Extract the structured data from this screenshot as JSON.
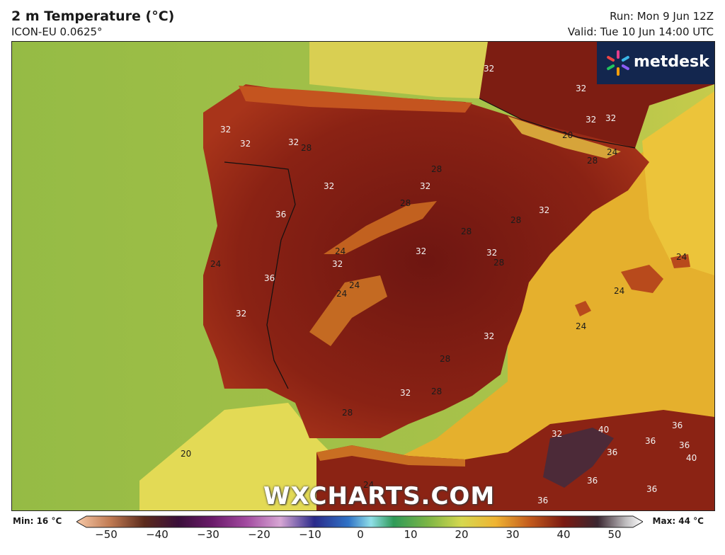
{
  "header": {
    "title": "2 m Temperature (°C)",
    "model": "ICON-EU 0.0625°",
    "run": "Run: Mon 9 Jun 12Z",
    "valid": "Valid: Tue 10 Jun 14:00 UTC"
  },
  "logo": {
    "text": "metdesk",
    "icon": "metdesk-flower-icon"
  },
  "watermark": "WXCHARTS.COM",
  "colorbar": {
    "min_label": "Min: 16 °C",
    "max_label": "Max: 44 °C",
    "ticks": [
      "−50",
      "−40",
      "−30",
      "−20",
      "−10",
      "0",
      "10",
      "20",
      "30",
      "40",
      "50"
    ],
    "range": [
      -50,
      50
    ]
  },
  "contour_labels": {
    "l1": "32",
    "l2": "32",
    "l3": "32",
    "l4": "32",
    "l5": "32",
    "l6": "20",
    "l7": "24",
    "l8": "28",
    "l9": "32",
    "l10": "32",
    "l11": "32",
    "l12": "28",
    "l13": "28",
    "l14": "32",
    "l15": "28",
    "l16": "32",
    "l17": "36",
    "l18": "28",
    "l19": "32",
    "l20": "28",
    "l21": "24",
    "l22": "32",
    "l23": "32",
    "l24": "24",
    "l25": "36",
    "l26": "24",
    "l27": "24",
    "l28": "28",
    "l29": "32",
    "l30": "24",
    "l31": "24",
    "l32": "32",
    "l33": "28",
    "l34": "32",
    "l35": "28",
    "l36": "28",
    "l37": "20",
    "l38": "24",
    "l39": "32",
    "l40": "40",
    "l41": "36",
    "l42": "36",
    "l43": "36",
    "l44": "36",
    "l45": "40",
    "l46": "36",
    "l47": "36",
    "l48": "36",
    "l49": "24"
  },
  "colors": {
    "atlantic": "#9cbf45",
    "atlantic_warm": "#c3c94a",
    "med_sea": "#e2b22e",
    "land_hot": "#8c2313",
    "land_very_hot": "#6a1510",
    "africa_hottest": "#4a2a38"
  }
}
